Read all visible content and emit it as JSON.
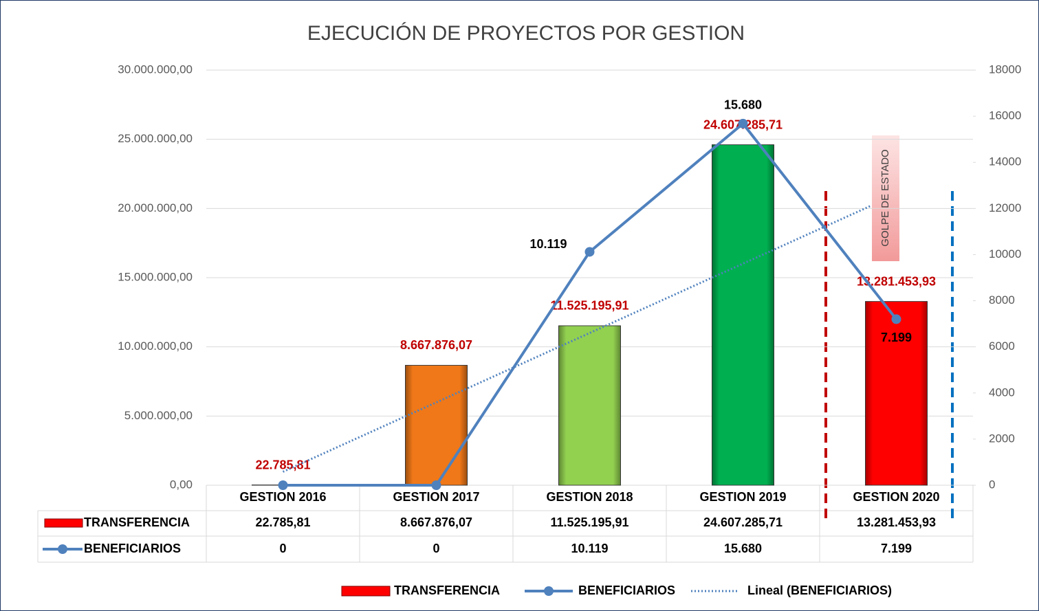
{
  "chart_data": {
    "type": "bar",
    "title": "EJECUCIÓN DE PROYECTOS POR GESTION",
    "categories": [
      "GESTION 2016",
      "GESTION 2017",
      "GESTION 2018",
      "GESTION 2019",
      "GESTION 2020"
    ],
    "series": [
      {
        "name": "TRANSFERENCIA",
        "type": "bar",
        "color": "#ff0000",
        "colors": [
          "#c00000",
          "#f07818",
          "#92d050",
          "#00b050",
          "#ff0000"
        ],
        "values": [
          22785.81,
          8667876.07,
          11525195.91,
          24607285.71,
          13281453.93
        ],
        "value_labels": [
          "22.785,81",
          "8.667.876,07",
          "11.525.195,91",
          "24.607.285,71",
          "13.281.453,93"
        ]
      },
      {
        "name": "BENEFICIARIOS",
        "type": "line",
        "axis": "y2",
        "color": "#4f81bd",
        "values": [
          0,
          0,
          10119,
          15680,
          7199
        ],
        "value_labels": [
          "0",
          "0",
          "10.119",
          "15.680",
          "7.199"
        ],
        "trendline": {
          "name": "Lineal (BENEFICIARIOS)",
          "color": "#4f81bd"
        }
      }
    ],
    "ylim": [
      0,
      30000000
    ],
    "yticks": [
      {
        "value": 0,
        "label": "0,00"
      },
      {
        "value": 5000000,
        "label": "5.000.000,00"
      },
      {
        "value": 10000000,
        "label": "10.000.000,00"
      },
      {
        "value": 15000000,
        "label": "15.000.000,00"
      },
      {
        "value": 20000000,
        "label": "20.000.000,00"
      },
      {
        "value": 25000000,
        "label": "25.000.000,00"
      },
      {
        "value": 30000000,
        "label": "30.000.000,00"
      }
    ],
    "y2lim": [
      0,
      18000
    ],
    "y2ticks": [
      0,
      2000,
      4000,
      6000,
      8000,
      10000,
      12000,
      14000,
      16000,
      18000
    ],
    "grid": true,
    "annotations": [
      {
        "text": "GOLPE DE ESTADO"
      }
    ]
  }
}
